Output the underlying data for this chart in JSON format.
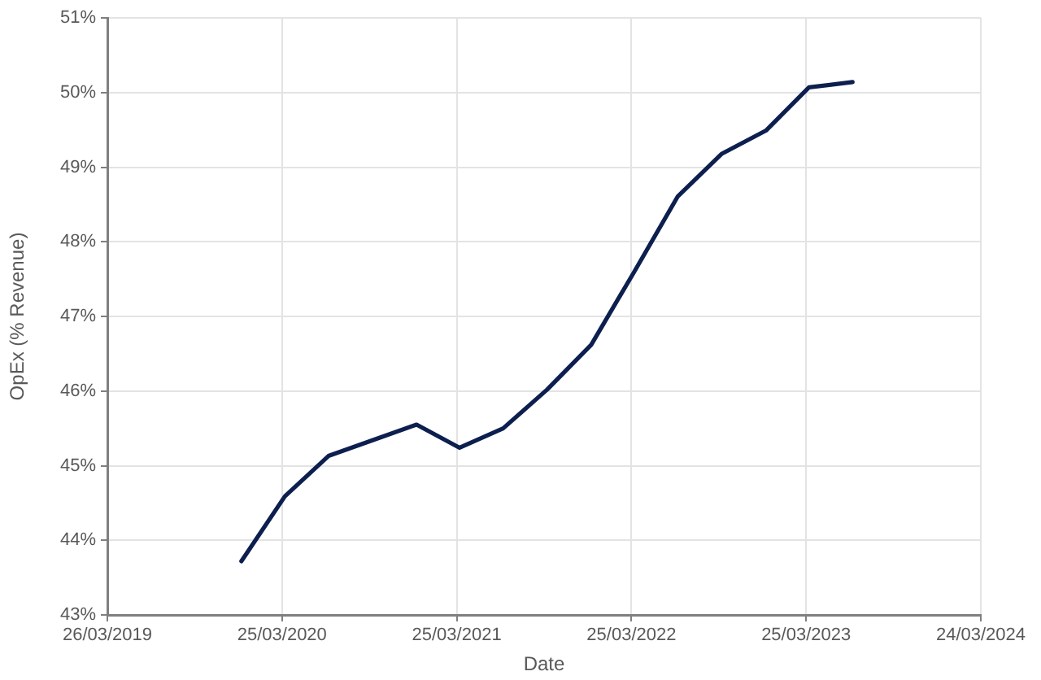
{
  "chart_data": {
    "type": "line",
    "xlabel": "Date",
    "ylabel": "OpEx (% Revenue)",
    "x": [
      "2019-12-31",
      "2020-03-31",
      "2020-06-30",
      "2020-09-30",
      "2020-12-31",
      "2021-03-31",
      "2021-06-30",
      "2021-09-30",
      "2021-12-31",
      "2022-03-31",
      "2022-06-30",
      "2022-09-30",
      "2022-12-31",
      "2023-03-31",
      "2023-06-30"
    ],
    "series": [
      {
        "color": "#0c1f4f",
        "values": [
          43.72,
          44.59,
          45.13,
          45.34,
          45.55,
          45.24,
          45.5,
          46.02,
          46.62,
          47.6,
          48.61,
          49.18,
          49.49,
          50.07,
          50.14
        ]
      }
    ],
    "xlim": [
      "2019-03-26",
      "2024-03-24"
    ],
    "xticks": [
      {
        "value": "2019-03-26",
        "label": "26/03/2019"
      },
      {
        "value": "2020-03-25",
        "label": "25/03/2020"
      },
      {
        "value": "2021-03-25",
        "label": "25/03/2021"
      },
      {
        "value": "2022-03-25",
        "label": "25/03/2022"
      },
      {
        "value": "2023-03-25",
        "label": "25/03/2023"
      },
      {
        "value": "2024-03-24",
        "label": "24/03/2024"
      }
    ],
    "ylim": [
      43,
      51
    ],
    "yticks": [
      {
        "value": 43,
        "label": "43%"
      },
      {
        "value": 44,
        "label": "44%"
      },
      {
        "value": 45,
        "label": "45%"
      },
      {
        "value": 46,
        "label": "46%"
      },
      {
        "value": 47,
        "label": "47%"
      },
      {
        "value": 48,
        "label": "48%"
      },
      {
        "value": 49,
        "label": "49%"
      },
      {
        "value": 50,
        "label": "50%"
      },
      {
        "value": 51,
        "label": "51%"
      }
    ],
    "grid": true,
    "legend": false,
    "marker": "none",
    "line_style": "solid"
  }
}
